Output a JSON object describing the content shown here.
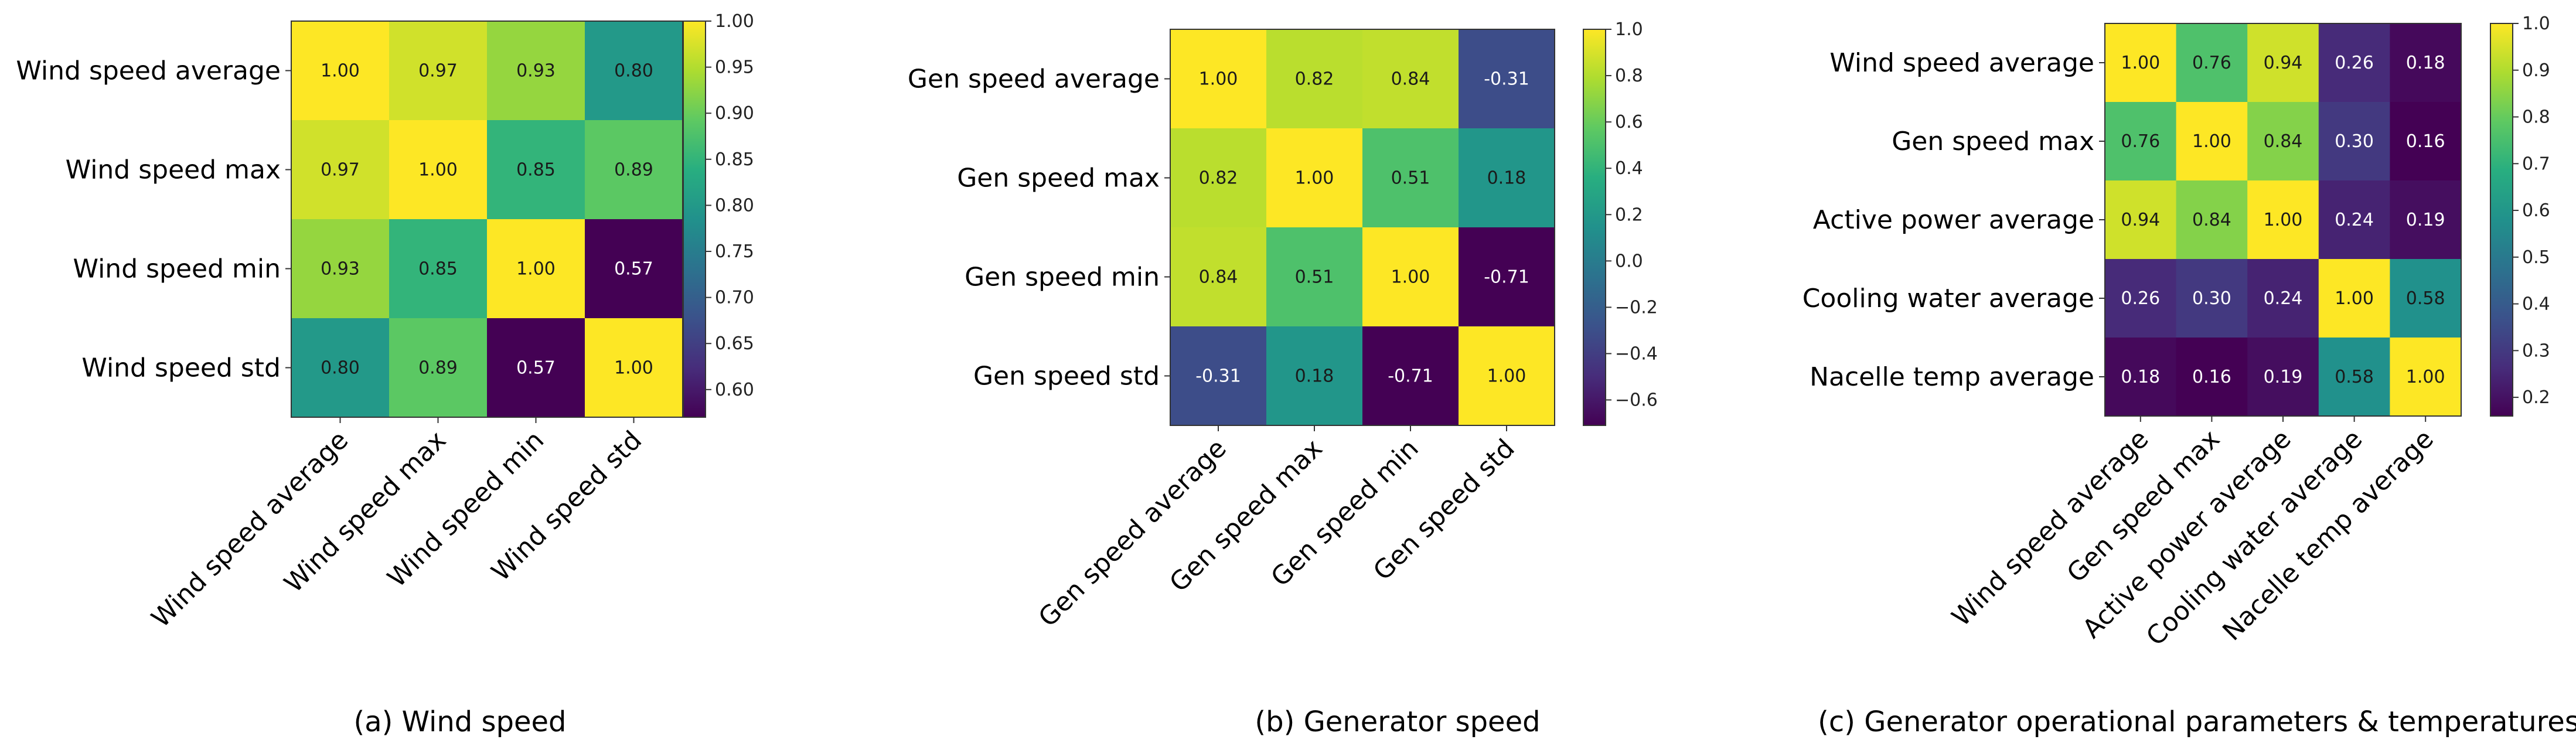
{
  "chart_data": [
    {
      "type": "heatmap",
      "caption": "(a) Wind speed",
      "rows": [
        "Wind speed average",
        "Wind speed max",
        "Wind speed min",
        "Wind speed std"
      ],
      "cols": [
        "Wind speed average",
        "Wind speed max",
        "Wind speed min",
        "Wind speed std"
      ],
      "values": [
        [
          1.0,
          0.97,
          0.93,
          0.8
        ],
        [
          0.97,
          1.0,
          0.85,
          0.89
        ],
        [
          0.93,
          0.85,
          1.0,
          0.57
        ],
        [
          0.8,
          0.89,
          0.57,
          1.0
        ]
      ],
      "cell_labels": [
        [
          "1.00",
          "0.97",
          "0.93",
          "0.80"
        ],
        [
          "0.97",
          "1.00",
          "0.85",
          "0.89"
        ],
        [
          "0.93",
          "0.85",
          "1.00",
          "0.57"
        ],
        [
          "0.80",
          "0.89",
          "0.57",
          "1.00"
        ]
      ],
      "vmin": 0.57,
      "vmax": 1.0,
      "colorbar_ticks": [
        0.6,
        0.65,
        0.7,
        0.75,
        0.8,
        0.85,
        0.9,
        0.95,
        1.0
      ],
      "colorbar_tick_labels": [
        "0.60",
        "0.65",
        "0.70",
        "0.75",
        "0.80",
        "0.85",
        "0.90",
        "0.95",
        "1.00"
      ],
      "colormap": "viridis"
    },
    {
      "type": "heatmap",
      "caption": "(b) Generator speed",
      "rows": [
        "Gen speed average",
        "Gen speed max",
        "Gen speed min",
        "Gen speed std"
      ],
      "cols": [
        "Gen speed average",
        "Gen speed max",
        "Gen speed min",
        "Gen speed std"
      ],
      "values": [
        [
          1.0,
          0.82,
          0.84,
          -0.31
        ],
        [
          0.82,
          1.0,
          0.51,
          0.18
        ],
        [
          0.84,
          0.51,
          1.0,
          -0.71
        ],
        [
          -0.31,
          0.18,
          -0.71,
          1.0
        ]
      ],
      "cell_labels": [
        [
          "1.00",
          "0.82",
          "0.84",
          "-0.31"
        ],
        [
          "0.82",
          "1.00",
          "0.51",
          "0.18"
        ],
        [
          "0.84",
          "0.51",
          "1.00",
          "-0.71"
        ],
        [
          "-0.31",
          "0.18",
          "-0.71",
          "1.00"
        ]
      ],
      "vmin": -0.71,
      "vmax": 1.0,
      "colorbar_ticks": [
        -0.6,
        -0.4,
        -0.2,
        0.0,
        0.2,
        0.4,
        0.6,
        0.8,
        1.0
      ],
      "colorbar_tick_labels": [
        "−0.6",
        "−0.4",
        "−0.2",
        "0.0",
        "0.2",
        "0.4",
        "0.6",
        "0.8",
        "1.0"
      ],
      "colormap": "viridis"
    },
    {
      "type": "heatmap",
      "caption": "(c) Generator operational parameters & temperatures",
      "rows": [
        "Wind speed average",
        "Gen speed max",
        "Active power average",
        "Cooling water average",
        "Nacelle temp average"
      ],
      "cols": [
        "Wind speed average",
        "Gen speed max",
        "Active power average",
        "Cooling water average",
        "Nacelle temp average"
      ],
      "values": [
        [
          1.0,
          0.76,
          0.94,
          0.26,
          0.18
        ],
        [
          0.76,
          1.0,
          0.84,
          0.3,
          0.16
        ],
        [
          0.94,
          0.84,
          1.0,
          0.24,
          0.19
        ],
        [
          0.26,
          0.3,
          0.24,
          1.0,
          0.58
        ],
        [
          0.18,
          0.16,
          0.19,
          0.58,
          1.0
        ]
      ],
      "cell_labels": [
        [
          "1.00",
          "0.76",
          "0.94",
          "0.26",
          "0.18"
        ],
        [
          "0.76",
          "1.00",
          "0.84",
          "0.30",
          "0.16"
        ],
        [
          "0.94",
          "0.84",
          "1.00",
          "0.24",
          "0.19"
        ],
        [
          "0.26",
          "0.30",
          "0.24",
          "1.00",
          "0.58"
        ],
        [
          "0.18",
          "0.16",
          "0.19",
          "0.58",
          "1.00"
        ]
      ],
      "vmin": 0.16,
      "vmax": 1.0,
      "colorbar_ticks": [
        0.2,
        0.3,
        0.4,
        0.5,
        0.6,
        0.7,
        0.8,
        0.9,
        1.0
      ],
      "colorbar_tick_labels": [
        "0.2",
        "0.3",
        "0.4",
        "0.5",
        "0.6",
        "0.7",
        "0.8",
        "0.9",
        "1.0"
      ],
      "colormap": "viridis"
    }
  ]
}
